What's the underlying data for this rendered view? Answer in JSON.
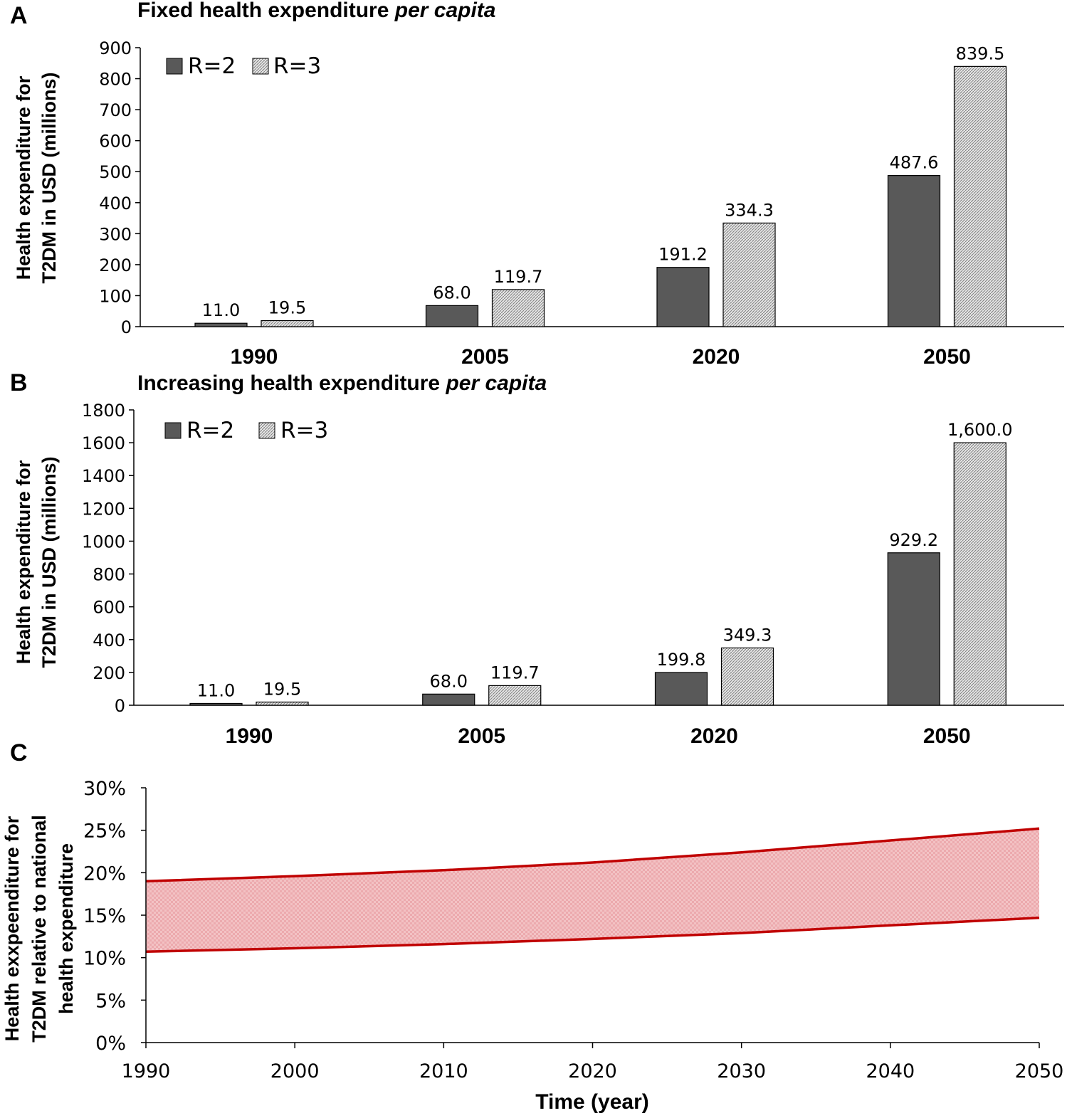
{
  "colors": {
    "r2": "#595959",
    "r3_bg": "#e6e6e6",
    "r3_hatch": "#7f7f7f",
    "band": "#f2b5b8",
    "band_line": "#c00000"
  },
  "chart_data": [
    {
      "type": "bar",
      "letter": "A",
      "title": "Fixed health expenditure ",
      "title_italic": "per capita",
      "ylabel_line1": "Health expenditure for",
      "ylabel_line2": "T2DM in USD (millions)",
      "xlabel": "",
      "ylim": [
        0,
        900
      ],
      "yticks": [
        "0",
        "100",
        "200",
        "300",
        "400",
        "500",
        "600",
        "700",
        "800",
        "900"
      ],
      "categories": [
        "1990",
        "2005",
        "2020",
        "2050"
      ],
      "legend": [
        "R=2",
        "R=3"
      ],
      "series": [
        {
          "name": "R=2",
          "values": [
            11.0,
            68.0,
            191.2,
            487.6
          ],
          "labels": [
            "11.0",
            "68.0",
            "191.2",
            "487.6"
          ]
        },
        {
          "name": "R=3",
          "values": [
            19.5,
            119.7,
            334.3,
            839.5
          ],
          "labels": [
            "19.5",
            "119.7",
            "334.3",
            "839.5"
          ]
        }
      ]
    },
    {
      "type": "bar",
      "letter": "B",
      "title": "Increasing health expenditure ",
      "title_italic": "per capita",
      "ylabel_line1": "Health expenditure for",
      "ylabel_line2": "T2DM in USD (millions)",
      "xlabel": "",
      "ylim": [
        0,
        1800
      ],
      "yticks": [
        "0",
        "200",
        "400",
        "600",
        "800",
        "1000",
        "1200",
        "1400",
        "1600",
        "1800"
      ],
      "categories": [
        "1990",
        "2005",
        "2020",
        "2050"
      ],
      "legend": [
        "R=2",
        "R=3"
      ],
      "series": [
        {
          "name": "R=2",
          "values": [
            11.0,
            68.0,
            199.8,
            929.2
          ],
          "labels": [
            "11.0",
            "68.0",
            "199.8",
            "929.2"
          ]
        },
        {
          "name": "R=3",
          "values": [
            19.5,
            119.7,
            349.3,
            1600.0
          ],
          "labels": [
            "19.5",
            "119.7",
            "349.3",
            "1,600.0"
          ]
        }
      ]
    },
    {
      "type": "area",
      "letter": "C",
      "ylabel_line1": "Health exxpeenditure for",
      "ylabel_line2": "T2DM relative to national",
      "ylabel_line3": "health expenditure",
      "xlabel": "Time (year)",
      "xlim": [
        1990,
        2050
      ],
      "ylim": [
        0,
        30
      ],
      "yticks": [
        "0%",
        "5%",
        "10%",
        "15%",
        "20%",
        "25%",
        "30%"
      ],
      "xticks": [
        "1990",
        "2000",
        "2010",
        "2020",
        "2030",
        "2040",
        "2050"
      ],
      "x": [
        1990,
        2000,
        2010,
        2020,
        2030,
        2040,
        2050
      ],
      "lower": [
        10.7,
        11.1,
        11.6,
        12.2,
        12.9,
        13.8,
        14.7
      ],
      "upper": [
        19.0,
        19.6,
        20.3,
        21.2,
        22.4,
        23.8,
        25.2
      ]
    }
  ]
}
